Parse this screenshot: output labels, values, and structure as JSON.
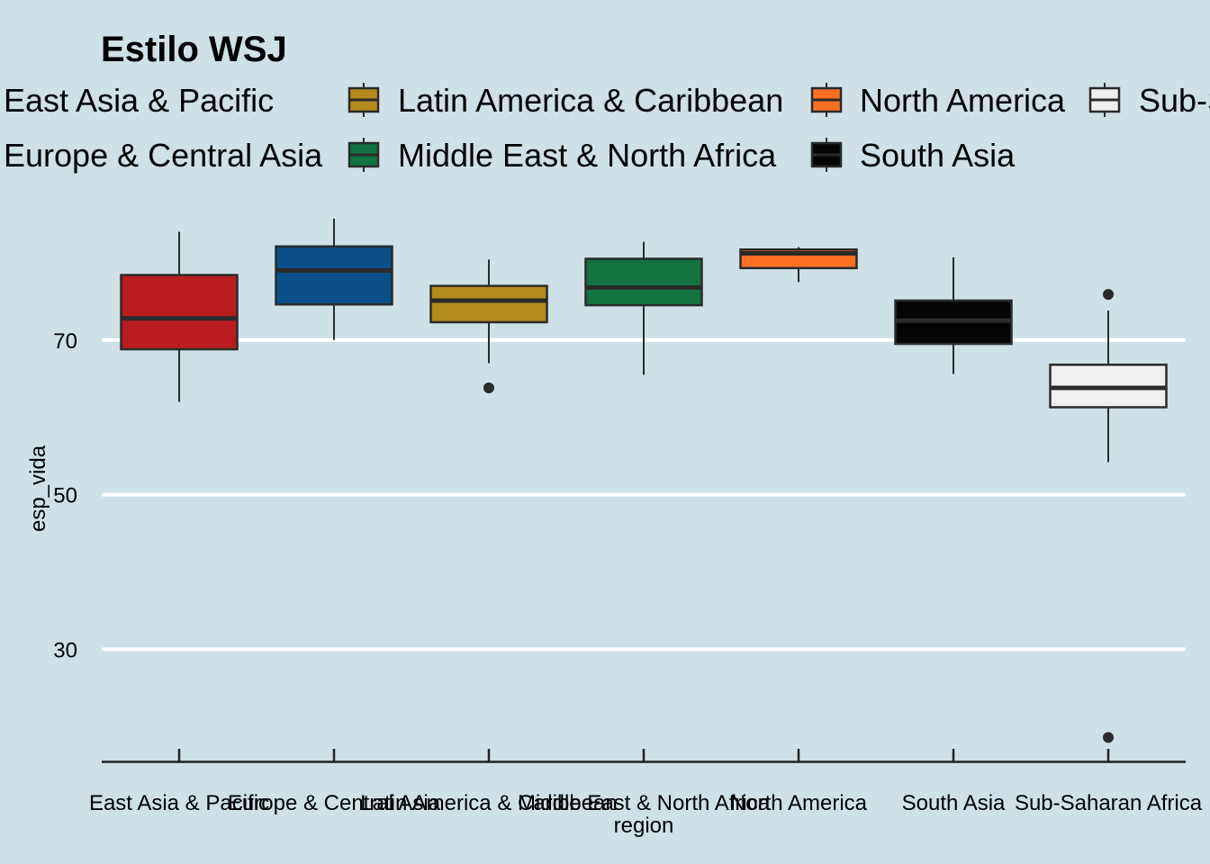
{
  "chart_data": {
    "type": "box",
    "title": "Estilo WSJ",
    "xlabel": "region",
    "ylabel": "esp_vida",
    "y_ticks": [
      30,
      50,
      70
    ],
    "ylim": [
      15.5,
      87.2
    ],
    "grid": "horizontal major lines",
    "legend_position": "top",
    "legend_labels": [
      "East Asia & Pacific",
      "Europe & Central Asia",
      "Latin America & Caribbean",
      "Middle East & North Africa",
      "North America",
      "South Asia",
      "Sub-Saharan Africa"
    ],
    "series": [
      {
        "name": "East Asia & Pacific",
        "color": "#b91c1f",
        "whisker_low": 62.0,
        "q1": 68.8,
        "median": 72.8,
        "q3": 78.4,
        "whisker_high": 84.0,
        "outliers": []
      },
      {
        "name": "Europe & Central Asia",
        "color": "#0b4f8a",
        "whisker_low": 70.0,
        "q1": 74.6,
        "median": 79.0,
        "q3": 82.1,
        "whisker_high": 85.7,
        "outliers": []
      },
      {
        "name": "Latin America & Caribbean",
        "color": "#b38b1c",
        "whisker_low": 67.0,
        "q1": 72.3,
        "median": 75.1,
        "q3": 77.0,
        "whisker_high": 80.4,
        "outliers": [
          63.8
        ]
      },
      {
        "name": "Middle East & North Africa",
        "color": "#137343",
        "whisker_low": 65.5,
        "q1": 74.5,
        "median": 76.8,
        "q3": 80.5,
        "whisker_high": 82.7,
        "outliers": []
      },
      {
        "name": "North America",
        "color": "#fb6f23",
        "whisker_low": 77.5,
        "q1": 79.3,
        "median": 81.2,
        "q3": 81.7,
        "whisker_high": 82.0,
        "outliers": []
      },
      {
        "name": "South Asia",
        "color": "#050505",
        "whisker_low": 65.6,
        "q1": 69.5,
        "median": 72.5,
        "q3": 75.1,
        "whisker_high": 80.7,
        "outliers": []
      },
      {
        "name": "Sub-Saharan Africa",
        "color": "#f0f0f0",
        "whisker_low": 54.2,
        "q1": 61.3,
        "median": 63.8,
        "q3": 66.8,
        "whisker_high": 73.8,
        "outliers": [
          75.9,
          18.6
        ]
      }
    ]
  }
}
